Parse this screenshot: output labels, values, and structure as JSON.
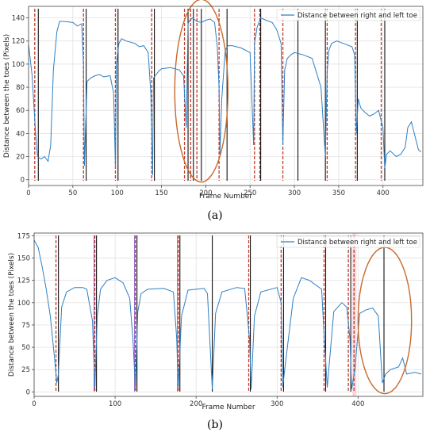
{
  "colors": {
    "series": "#2f7fc2",
    "dashed": "#c0392b",
    "solid": "#111111",
    "ellipse": "#c86a2a",
    "grid": "#dddddd",
    "purple": "#9b6ad1",
    "pink": "#f7c9d0"
  },
  "chart_data": [
    {
      "panel": "(a)",
      "type": "line",
      "xlabel": "Frame Number",
      "ylabel": "Distance between the toes (Pixels)",
      "legend": "Distance between right and left toe",
      "legend_position": "top-right",
      "grid": true,
      "xlim": [
        0,
        445
      ],
      "ylim": [
        -5,
        150
      ],
      "xticks": [
        0,
        50,
        100,
        150,
        200,
        250,
        300,
        350,
        400
      ],
      "yticks": [
        0,
        20,
        40,
        60,
        80,
        100,
        120,
        140
      ],
      "series": [
        {
          "name": "Distance between right and left toe",
          "x": [
            0,
            4,
            8,
            10,
            14,
            18,
            22,
            25,
            28,
            32,
            35,
            40,
            50,
            55,
            60,
            62,
            63,
            66,
            70,
            75,
            80,
            85,
            92,
            96,
            98,
            99,
            102,
            105,
            110,
            120,
            125,
            130,
            135,
            138,
            140,
            141,
            143,
            147,
            150,
            160,
            170,
            175,
            178,
            180,
            182,
            185,
            190,
            195,
            200,
            205,
            210,
            213,
            215,
            216,
            218,
            222,
            225,
            230,
            240,
            250,
            254,
            255,
            258,
            262,
            268,
            275,
            280,
            285,
            287,
            289,
            292,
            296,
            300,
            310,
            320,
            330,
            335,
            337,
            339,
            342,
            348,
            355,
            365,
            368,
            370,
            372,
            375,
            380,
            385,
            390,
            395,
            400,
            402,
            404,
            408,
            415,
            420,
            425,
            428,
            432,
            440,
            443
          ],
          "y": [
            117,
            90,
            40,
            20,
            18,
            20,
            16,
            30,
            95,
            128,
            137,
            137,
            136,
            133,
            135,
            100,
            12,
            85,
            88,
            90,
            91,
            89,
            90,
            75,
            10,
            100,
            118,
            122,
            120,
            118,
            115,
            116,
            110,
            75,
            4,
            88,
            90,
            94,
            96,
            97,
            95,
            90,
            45,
            135,
            138,
            140,
            137,
            136,
            138,
            139,
            136,
            115,
            80,
            22,
            70,
            112,
            116,
            116,
            114,
            110,
            30,
            118,
            132,
            140,
            138,
            136,
            130,
            118,
            30,
            95,
            105,
            108,
            110,
            108,
            105,
            80,
            20,
            94,
            112,
            118,
            120,
            118,
            115,
            108,
            40,
            70,
            62,
            58,
            55,
            57,
            60,
            45,
            10,
            22,
            25,
            20,
            22,
            28,
            45,
            50,
            26,
            24
          ]
        }
      ],
      "dashed_lines": [
        7,
        62,
        98,
        139,
        176,
        183,
        190,
        215,
        255,
        261,
        287,
        337,
        369,
        398
      ],
      "solid_lines": [
        11,
        65,
        101,
        142,
        180,
        186,
        195,
        224,
        262,
        304,
        335,
        371,
        402
      ],
      "highlight_ellipse": {
        "cx": 195,
        "cy": 77,
        "rx": 30,
        "ry": 79
      }
    },
    {
      "panel": "(b)",
      "type": "line",
      "xlabel": "Frame Number",
      "ylabel": "Distance between the toes (Pixels)",
      "legend": "Distance between right and left toe",
      "legend_position": "top-right",
      "grid": true,
      "xlim": [
        0,
        480
      ],
      "ylim": [
        -5,
        178
      ],
      "xticks": [
        0,
        100,
        200,
        300,
        400
      ],
      "yticks": [
        0,
        25,
        50,
        75,
        100,
        125,
        150,
        175
      ],
      "series": [
        {
          "name": "Distance between right and left toe",
          "x": [
            0,
            5,
            10,
            15,
            20,
            25,
            28,
            30,
            34,
            40,
            50,
            60,
            65,
            72,
            75,
            78,
            82,
            90,
            100,
            110,
            118,
            122,
            125,
            128,
            132,
            140,
            160,
            172,
            176,
            178,
            182,
            190,
            210,
            214,
            218,
            220,
            224,
            232,
            250,
            260,
            266,
            268,
            272,
            280,
            300,
            305,
            307,
            310,
            320,
            330,
            340,
            355,
            358,
            362,
            370,
            380,
            386,
            390,
            392,
            396,
            402,
            410,
            418,
            425,
            428,
            430,
            434,
            440,
            450,
            455,
            460,
            470,
            478
          ],
          "y": [
            170,
            162,
            140,
            115,
            85,
            40,
            10,
            20,
            95,
            112,
            117,
            117,
            115,
            80,
            5,
            85,
            115,
            125,
            128,
            122,
            105,
            60,
            5,
            90,
            110,
            115,
            116,
            112,
            60,
            5,
            85,
            114,
            116,
            110,
            40,
            3,
            88,
            112,
            117,
            116,
            60,
            3,
            85,
            112,
            117,
            100,
            5,
            30,
            105,
            128,
            125,
            115,
            65,
            5,
            90,
            100,
            95,
            60,
            3,
            25,
            88,
            92,
            94,
            85,
            40,
            10,
            20,
            25,
            28,
            38,
            20,
            22,
            20
          ]
        }
      ],
      "dashed_lines": [
        27,
        75,
        125,
        178,
        265,
        305,
        358,
        388,
        395
      ],
      "solid_lines": [
        30,
        77,
        127,
        180,
        220,
        267,
        308,
        360,
        391,
        432
      ],
      "purple_lines": [
        74,
        124,
        177
      ],
      "pink_band": [
        393,
        398
      ],
      "highlight_ellipse": {
        "cx": 433,
        "cy": 80,
        "rx": 33,
        "ry": 82
      }
    }
  ],
  "panels": {
    "a_label": "(a)",
    "b_label": "(b)"
  }
}
